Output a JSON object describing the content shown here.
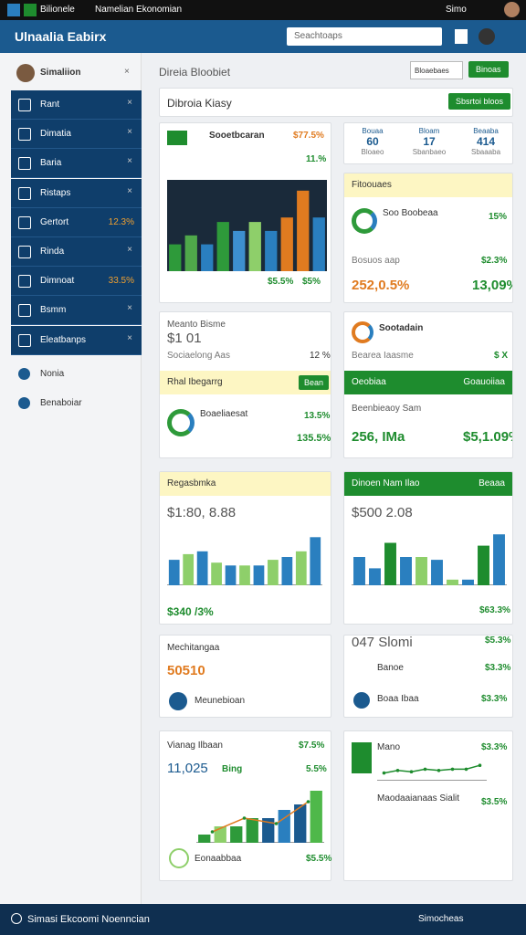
{
  "topbar": {
    "app": "Bilionele",
    "title": "Namelian Ekonomian",
    "user": "Simo"
  },
  "header": {
    "title": "Ulnaalia Eabirx",
    "search": "Seachtoaps"
  },
  "sidebar": {
    "profile": "Simaliion",
    "items": [
      {
        "label": "Rant"
      },
      {
        "label": "Dimatia"
      },
      {
        "label": "Baria"
      },
      {
        "label": "Ristaps"
      },
      {
        "label": "Gertort",
        "value": "12.3%"
      },
      {
        "label": "Rinda"
      },
      {
        "label": "Dimnoat",
        "value": "33.5%"
      },
      {
        "label": "Bsmm"
      },
      {
        "label": "Eleatbanps"
      }
    ],
    "extra": [
      "Nonia",
      "Benaboiar"
    ]
  },
  "main": {
    "title": "Direia Bloobiet",
    "buttons": [
      "Bloaebaes",
      "Binoas"
    ],
    "panel_title": "Dibroia Kiasy",
    "panel_button": "Sbsrtoi bloos"
  },
  "cards": {
    "c1": {
      "title": "Sooetbcaran",
      "value": "$77.5%",
      "sub": "11.%",
      "legend": [
        "$5.5%",
        "$5%"
      ],
      "chart": {
        "type": "bar",
        "values": [
          30,
          40,
          30,
          55,
          45,
          55,
          45,
          60,
          90,
          60
        ],
        "colors": [
          "#2e9a3a",
          "#4fa84a",
          "#2a7fbf",
          "#2e9a3a",
          "#3d8fd0",
          "#8ecf6a",
          "#2a7fbf",
          "#e07b20",
          "#e07b20",
          "#2a7fbf"
        ],
        "ylim": [
          0,
          100
        ]
      }
    },
    "c2": {
      "stats": [
        {
          "label": "Bouaa",
          "value": "60",
          "sub": "Bloaeo"
        },
        {
          "label": "Bloam",
          "value": "17",
          "sub": "Sbanbaeo"
        },
        {
          "label": "Beaaba",
          "value": "414",
          "sub": "Sbaaaba"
        }
      ]
    },
    "c3": {
      "title": "Fitoouaes",
      "row1": "Soo Boobeaa",
      "row1_value": "15%",
      "row2": "Bosuos aap",
      "row2_value": "$2.3%",
      "big1": "252,0.5%",
      "big2": "13,09%"
    },
    "c4": {
      "title": "Meanto Bisme",
      "value": "$1 01",
      "row": "Sociaelong Aas",
      "row_value": "12 %",
      "band": "Rhal Ibegarrg",
      "button": "Bean",
      "item": "Boaeliaesat",
      "item_value": "13.5%",
      "big": "135.5%"
    },
    "c5": {
      "title": "Sootadain",
      "row": "Bearea Iaasme",
      "row_value": "$ X",
      "band": "Oeobiaa",
      "band_right": "Goauoiiaa",
      "sub": "Beenbieaoy Sam",
      "big1": "256, IMa",
      "big2": "$5,1.09%"
    },
    "c6": {
      "title": "Regasbmka",
      "value": "$1:80, 8.88",
      "foot": "$340 /3%",
      "chart": {
        "type": "bar",
        "values": [
          45,
          55,
          60,
          40,
          35,
          35,
          35,
          45,
          50,
          60,
          85
        ],
        "colors": [
          "#2a7fbf",
          "#8ecf6a",
          "#2a7fbf",
          "#8ecf6a",
          "#2a7fbf",
          "#8ecf6a",
          "#2a7fbf",
          "#8ecf6a",
          "#2a7fbf",
          "#8ecf6a",
          "#2a7fbf"
        ],
        "ylim": [
          0,
          100
        ]
      }
    },
    "c7": {
      "title": "Dinoen Nam Ilao",
      "button": "Beaaa",
      "value": "$500 2.08",
      "foot": "$63.3%",
      "chart": {
        "type": "bar",
        "values": [
          50,
          30,
          75,
          50,
          50,
          45,
          10,
          10,
          70,
          90
        ],
        "colors": [
          "#2a7fbf",
          "#2a7fbf",
          "#1e8c2e",
          "#2a7fbf",
          "#8ecf6a",
          "#2a7fbf",
          "#8ecf6a",
          "#2a7fbf",
          "#1e8c2e",
          "#2a7fbf"
        ],
        "ylim": [
          0,
          100
        ]
      }
    },
    "c8": {
      "title": "Mechitangaa",
      "value": "50510",
      "row": "Meunebioan"
    },
    "c9": {
      "title": "047 Slomi",
      "title_value": "$5.3%",
      "row1": "Banoe",
      "row1_value": "$3.3%",
      "row2": "Boaa Ibaa",
      "row2_value": "$3.3%"
    },
    "c10": {
      "title": "Vianag Ilbaan",
      "title_value": "$7.5%",
      "value": "11,025",
      "value_sub": "Bing",
      "value_pct": "5.5%",
      "foot": "Eonaabbaa",
      "foot_value": "$5.5%",
      "chart": {
        "type": "bar",
        "values": [
          15,
          30,
          30,
          45,
          45,
          60,
          70,
          95
        ],
        "colors": [
          "#2e9a3a",
          "#8ecf6a",
          "#2e9a3a",
          "#2e9a3a",
          "#1b5a8f",
          "#2a7fbf",
          "#1b5a8f",
          "#4fb84a"
        ],
        "line": [
          20,
          45,
          35,
          75
        ],
        "ylim": [
          0,
          100
        ]
      }
    },
    "c11": {
      "title": "Mano",
      "title_value": "$3.3%",
      "foot": "Maodaaianaas Sialit",
      "foot_value": "$3.5%",
      "chart": {
        "type": "line",
        "line": [
          30,
          40,
          35,
          45,
          40,
          45,
          45,
          60
        ],
        "ylim": [
          0,
          100
        ]
      }
    }
  },
  "footer": {
    "title": "Simasi Ekcoomi Noenncian",
    "right": "Simocheas"
  }
}
